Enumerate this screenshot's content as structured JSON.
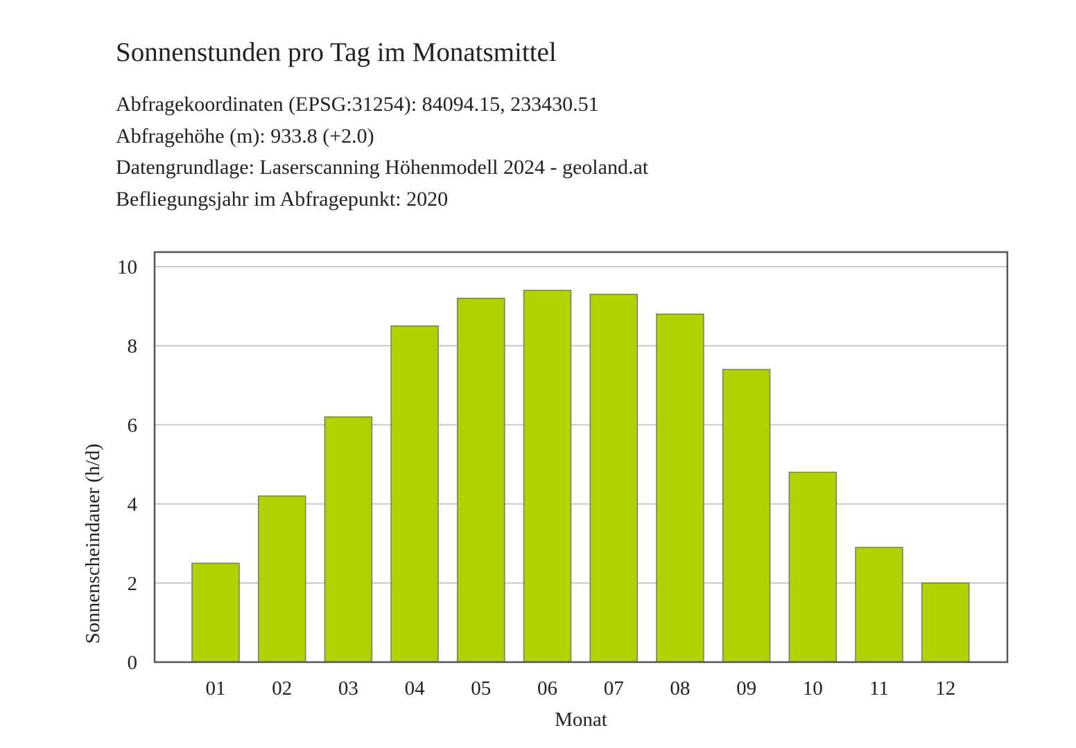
{
  "header": {
    "title": "Sonnenstunden pro Tag im Monatsmittel",
    "info_lines": [
      "Abfragekoordinaten (EPSG:31254): 84094.15, 233430.51",
      "Abfragehöhe (m): 933.8 (+2.0)",
      "Datengrundlage: Laserscanning Höhenmodell 2024 - geoland.at",
      "Befliegungsjahr im Abfragepunkt: 2020"
    ]
  },
  "chart_data": {
    "type": "bar",
    "title": "Sonnenstunden pro Tag im Monatsmittel",
    "xlabel": "Monat",
    "ylabel": "Sonnenscheindauer (h/d)",
    "categories": [
      "01",
      "02",
      "03",
      "04",
      "05",
      "06",
      "07",
      "08",
      "09",
      "10",
      "11",
      "12"
    ],
    "values": [
      2.5,
      4.2,
      6.2,
      8.5,
      9.2,
      9.4,
      9.3,
      8.8,
      7.4,
      4.8,
      2.9,
      2.0
    ],
    "ylim": [
      0,
      10
    ],
    "yticks": [
      0,
      2,
      4,
      6,
      8,
      10
    ],
    "grid": true,
    "legend": "none",
    "bar_color": "#b2d200",
    "bar_edge_color": "#777777",
    "grid_color": "#c8c8c8",
    "frame_color": "#555555"
  }
}
